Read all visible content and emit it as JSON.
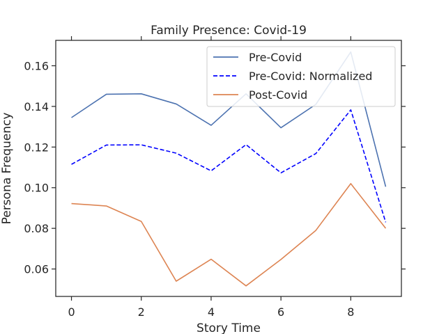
{
  "chart_data": {
    "type": "line",
    "title": "Family Presence: Covid-19",
    "xlabel": "Story Time",
    "ylabel": "Persona Frequency",
    "x": [
      0,
      1,
      2,
      3,
      4,
      5,
      6,
      7,
      8,
      9
    ],
    "xlim": [
      -0.45,
      9.45
    ],
    "ylim": [
      0.0465,
      0.1725
    ],
    "xticks": [
      0,
      2,
      4,
      6,
      8
    ],
    "xtick_labels": [
      "0",
      "2",
      "4",
      "6",
      "8"
    ],
    "yticks": [
      0.06,
      0.08,
      0.1,
      0.12,
      0.14,
      0.16
    ],
    "ytick_labels": [
      "0.06",
      "0.08",
      "0.10",
      "0.12",
      "0.14",
      "0.16"
    ],
    "grid": false,
    "legend_position": "top-right",
    "series": [
      {
        "name": "Pre-Covid",
        "color": "#4c72b0",
        "style": "solid",
        "values": [
          0.1345,
          0.146,
          0.1462,
          0.1412,
          0.1307,
          0.1462,
          0.1295,
          0.141,
          0.1668,
          0.1005
        ]
      },
      {
        "name": "Pre-Covid: Normalized",
        "color": "#0000ff",
        "style": "dashed",
        "values": [
          0.1115,
          0.121,
          0.1211,
          0.117,
          0.1083,
          0.1212,
          0.1073,
          0.1168,
          0.1383,
          0.083
        ]
      },
      {
        "name": "Post-Covid",
        "color": "#dd8452",
        "style": "solid",
        "values": [
          0.0922,
          0.091,
          0.0834,
          0.054,
          0.0648,
          0.0517,
          0.0647,
          0.079,
          0.102,
          0.08
        ]
      }
    ]
  }
}
